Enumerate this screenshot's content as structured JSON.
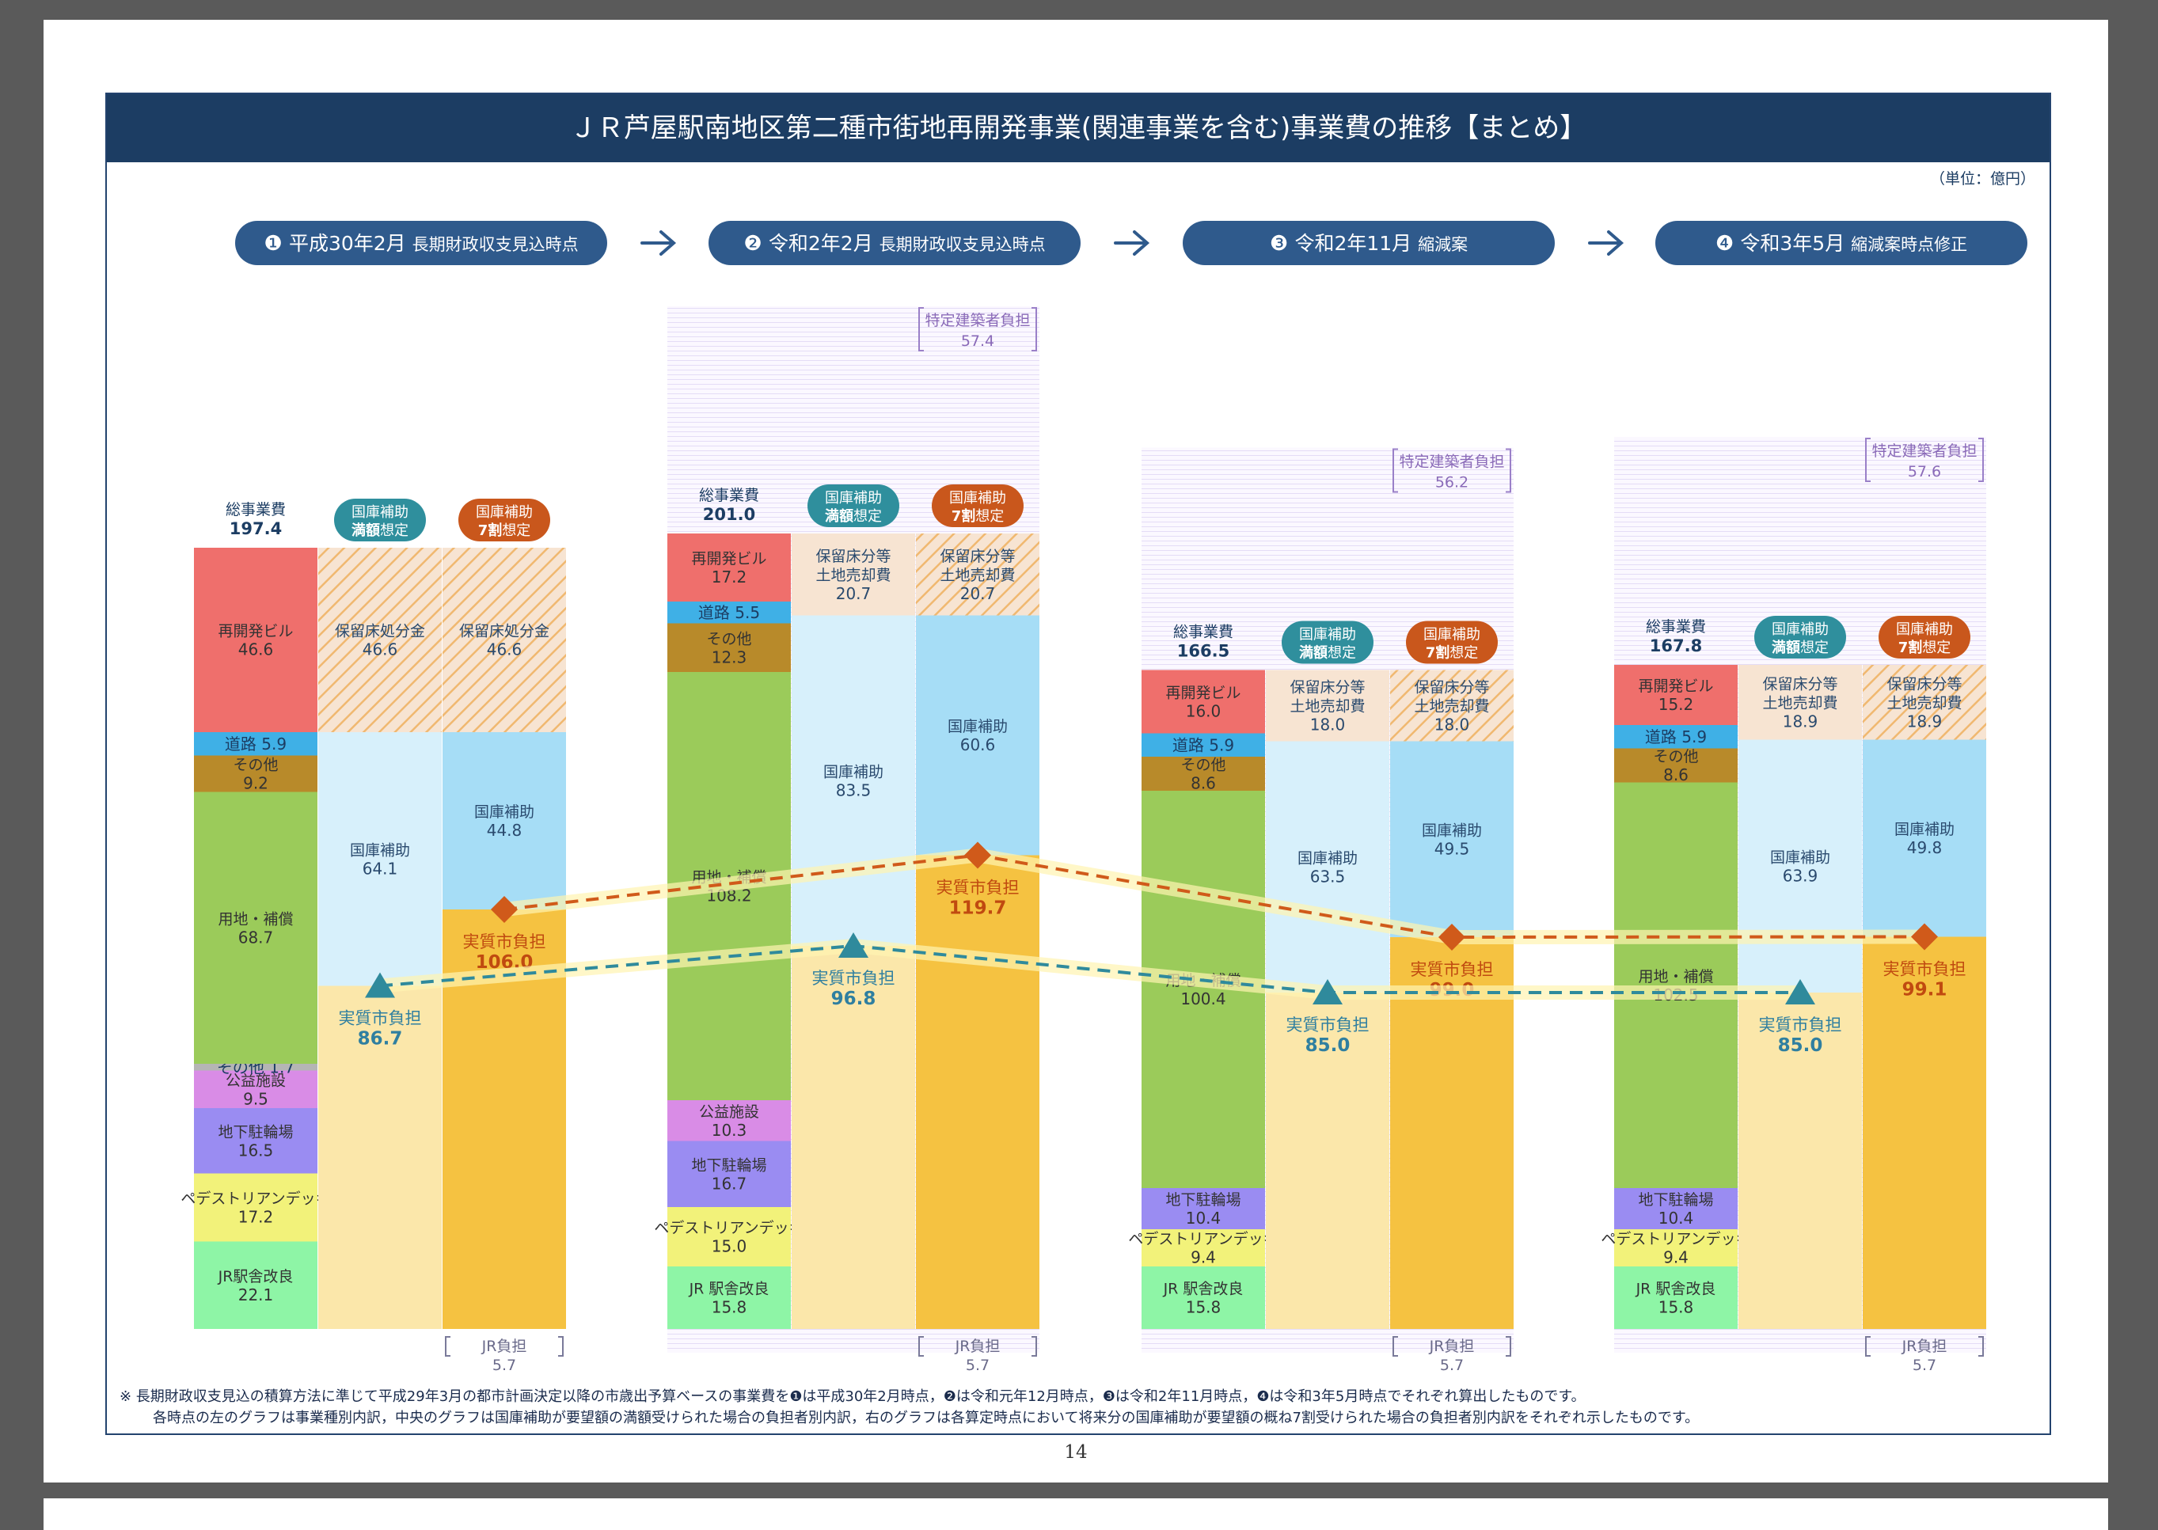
{
  "title": "ＪＲ芦屋駅南地区第二種市街地再開発事業(関連事業を含む)事業費の推移【まとめ】",
  "unit": "（単位：億円）",
  "page_number": "14",
  "footnotes": [
    "※ 長期財政収支見込の積算方法に準じて平成29年3月の都市計画決定以降の市歳出予算ベースの事業費を❶は平成30年2月時点，❷は令和元年12月時点，❸は令和2年11月時点，❹は令和3年5月時点でそれぞれ算出したものです。",
    "各時点の左のグラフは事業種別内訳，中央のグラフは国庫補助が要望額の満額受けられた場合の負担者別内訳，右のグラフは各算定時点において将来分の国庫補助が要望額の概ね7割受けられた場合の負担者別内訳をそれぞれ示したものです。"
  ],
  "colors": {
    "navy": "#1c3d63",
    "pill": "#2f5a8c",
    "redevelopment_building": "#ef6f6c",
    "road": "#3fb0e6",
    "other": "#b88a2a",
    "land_compensation": "#9bcb5a",
    "other_small": "#b5b5b5",
    "public_facility": "#d98ce6",
    "underground_parking": "#9a8cf2",
    "pedestrian_deck": "#f2f27a",
    "jr_station": "#8ef5a6",
    "reserved_floor": "#f7e4d2",
    "subsidy_full": "#d7f0fb",
    "subsidy_70": "#a6ddf6",
    "city_burden_full": "#fbe7aa",
    "city_burden_70": "#f5c241",
    "full_line": "#2f8a9c",
    "seventy_line": "#d05a1a",
    "badge_full": "#2f8f9d",
    "badge_70": "#c9571c"
  },
  "stages": [
    {
      "num": "❶",
      "date": "平成30年2月",
      "desc": "長期財政収支見込時点"
    },
    {
      "num": "❷",
      "date": "令和2年2月",
      "desc": "長期財政収支見込時点"
    },
    {
      "num": "❸",
      "date": "令和2年11月",
      "desc": "縮減案"
    },
    {
      "num": "❹",
      "date": "令和3年5月",
      "desc": "縮減案時点修正"
    }
  ],
  "labels": {
    "total": "総事業費",
    "badge_full_line1": "国庫補助",
    "badge_full_line2a": "満額",
    "badge_full_line2b": "想定",
    "badge_70_line1": "国庫補助",
    "badge_70_line2a": "7割",
    "badge_70_line2b": "想定",
    "city_burden": "実質市負担",
    "jr_burden": "JR負担",
    "special_builder": "特定建築者負担"
  },
  "chart_data": {
    "type": "bar",
    "stacked": true,
    "unit": "億円",
    "groups": [
      {
        "stage": "❶ 平成30年2月 長期財政収支見込時点",
        "total": "197.4",
        "by_type": [
          {
            "name": "再開発ビル",
            "value": 46.6,
            "color_key": "redevelopment_building"
          },
          {
            "name": "道路",
            "value": 5.9,
            "color_key": "road",
            "inline": true
          },
          {
            "name": "その他",
            "value": 9.2,
            "color_key": "other"
          },
          {
            "name": "用地・補償",
            "value": 68.7,
            "color_key": "land_compensation"
          },
          {
            "name": "その他",
            "value": 1.7,
            "color_key": "other_small",
            "inline": true
          },
          {
            "name": "公益施設",
            "value": 9.5,
            "color_key": "public_facility"
          },
          {
            "name": "地下駐輪場",
            "value": 16.5,
            "color_key": "underground_parking"
          },
          {
            "name": "ペデストリアンデッキ",
            "value": 17.2,
            "color_key": "pedestrian_deck"
          },
          {
            "name": "JR駅舎改良",
            "value": 22.1,
            "color_key": "jr_station"
          }
        ],
        "full_subsidy": [
          {
            "name": "保留床処分金",
            "value": 46.6,
            "color_key": "reserved_floor",
            "hatch": true
          },
          {
            "name": "国庫補助",
            "value": 64.1,
            "color_key": "subsidy_full"
          },
          {
            "name": "実質市負担",
            "value": 86.7,
            "color_key": "city_burden_full",
            "city": true
          }
        ],
        "subsidy_70": [
          {
            "name": "保留床処分金",
            "value": 46.6,
            "color_key": "reserved_floor",
            "hatch": true
          },
          {
            "name": "国庫補助",
            "value": 44.8,
            "color_key": "subsidy_70"
          },
          {
            "name": "実質市負担",
            "value": 106.0,
            "color_key": "city_burden_70",
            "city": true
          }
        ],
        "special_builder": null,
        "jr_burden": "5.7",
        "city_full_label": "86.7",
        "city_70_label": "106.0"
      },
      {
        "stage": "❷ 令和2年2月 長期財政収支見込時点",
        "total": "201.0",
        "by_type": [
          {
            "name": "再開発ビル",
            "value": 17.2,
            "color_key": "redevelopment_building"
          },
          {
            "name": "道路",
            "value": 5.5,
            "color_key": "road",
            "inline": true
          },
          {
            "name": "その他",
            "value": 12.3,
            "color_key": "other"
          },
          {
            "name": "用地・補償",
            "value": 108.2,
            "color_key": "land_compensation"
          },
          {
            "name": "公益施設",
            "value": 10.3,
            "color_key": "public_facility"
          },
          {
            "name": "地下駐輪場",
            "value": 16.7,
            "color_key": "underground_parking"
          },
          {
            "name": "ペデストリアンデッキ",
            "value": 15.0,
            "color_key": "pedestrian_deck"
          },
          {
            "name": "JR 駅舎改良",
            "value": 15.8,
            "color_key": "jr_station"
          }
        ],
        "full_subsidy": [
          {
            "name": "保留床分等\n土地売却費",
            "value": 20.7,
            "color_key": "reserved_floor",
            "hatch": false
          },
          {
            "name": "国庫補助",
            "value": 83.5,
            "color_key": "subsidy_full"
          },
          {
            "name": "実質市負担",
            "value": 96.8,
            "color_key": "city_burden_full",
            "city": true
          }
        ],
        "subsidy_70": [
          {
            "name": "保留床分等\n土地売却費",
            "value": 20.7,
            "color_key": "reserved_floor",
            "hatch": true
          },
          {
            "name": "国庫補助",
            "value": 60.6,
            "color_key": "subsidy_70"
          },
          {
            "name": "実質市負担",
            "value": 119.7,
            "color_key": "city_burden_70",
            "city": true
          }
        ],
        "special_builder": "57.4",
        "jr_burden": "5.7",
        "city_full_label": "96.8",
        "city_70_label": "119.7"
      },
      {
        "stage": "❸ 令和2年11月 縮減案",
        "total": "166.5",
        "by_type": [
          {
            "name": "再開発ビル",
            "value": 16.0,
            "color_key": "redevelopment_building"
          },
          {
            "name": "道路",
            "value": 5.9,
            "color_key": "road",
            "inline": true
          },
          {
            "name": "その他",
            "value": 8.6,
            "color_key": "other"
          },
          {
            "name": "用地・補償",
            "value": 100.4,
            "color_key": "land_compensation"
          },
          {
            "name": "地下駐輪場",
            "value": 10.4,
            "color_key": "underground_parking"
          },
          {
            "name": "ペデストリアンデッキ",
            "value": 9.4,
            "color_key": "pedestrian_deck"
          },
          {
            "name": "JR 駅舎改良",
            "value": 15.8,
            "color_key": "jr_station"
          }
        ],
        "full_subsidy": [
          {
            "name": "保留床分等\n土地売却費",
            "value": 18.0,
            "color_key": "reserved_floor",
            "hatch": false
          },
          {
            "name": "国庫補助",
            "value": 63.5,
            "color_key": "subsidy_full"
          },
          {
            "name": "実質市負担",
            "value": 85.0,
            "color_key": "city_burden_full",
            "city": true
          }
        ],
        "subsidy_70": [
          {
            "name": "保留床分等\n土地売却費",
            "value": 18.0,
            "color_key": "reserved_floor",
            "hatch": true
          },
          {
            "name": "国庫補助",
            "value": 49.5,
            "color_key": "subsidy_70"
          },
          {
            "name": "実質市負担",
            "value": 99.0,
            "color_key": "city_burden_70",
            "city": true
          }
        ],
        "special_builder": "56.2",
        "jr_burden": "5.7",
        "city_full_label": "85.0",
        "city_70_label": "99.0"
      },
      {
        "stage": "❹ 令和3年5月 縮減案時点修正",
        "total": "167.8",
        "by_type": [
          {
            "name": "再開発ビル",
            "value": 15.2,
            "color_key": "redevelopment_building"
          },
          {
            "name": "道路",
            "value": 5.9,
            "color_key": "road",
            "inline": true
          },
          {
            "name": "その他",
            "value": 8.6,
            "color_key": "other"
          },
          {
            "name": "用地・補償",
            "value": 102.5,
            "color_key": "land_compensation"
          },
          {
            "name": "地下駐輪場",
            "value": 10.4,
            "color_key": "underground_parking"
          },
          {
            "name": "ペデストリアンデッキ",
            "value": 9.4,
            "color_key": "pedestrian_deck"
          },
          {
            "name": "JR 駅舎改良",
            "value": 15.8,
            "color_key": "jr_station"
          }
        ],
        "full_subsidy": [
          {
            "name": "保留床分等\n土地売却費",
            "value": 18.9,
            "color_key": "reserved_floor",
            "hatch": false
          },
          {
            "name": "国庫補助",
            "value": 63.9,
            "color_key": "subsidy_full"
          },
          {
            "name": "実質市負担",
            "value": 85.0,
            "color_key": "city_burden_full",
            "city": true
          }
        ],
        "subsidy_70": [
          {
            "name": "保留床分等\n土地売却費",
            "value": 18.9,
            "color_key": "reserved_floor",
            "hatch": true
          },
          {
            "name": "国庫補助",
            "value": 49.8,
            "color_key": "subsidy_70"
          },
          {
            "name": "実質市負担",
            "value": 99.1,
            "color_key": "city_burden_70",
            "city": true
          }
        ],
        "special_builder": "57.6",
        "jr_burden": "5.7",
        "city_full_label": "85.0",
        "city_70_label": "99.1"
      }
    ],
    "lines": [
      {
        "name": "国庫補助 満額想定",
        "marker": "triangle",
        "values": [
          86.7,
          96.8,
          85.0,
          85.0
        ]
      },
      {
        "name": "国庫補助 7割想定",
        "marker": "diamond",
        "values": [
          106.0,
          119.7,
          99.0,
          99.1
        ]
      }
    ]
  }
}
